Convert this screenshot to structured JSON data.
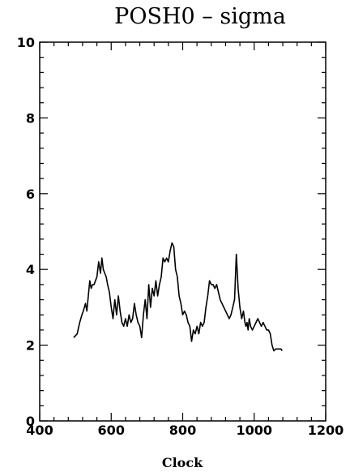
{
  "chart_data": {
    "type": "line",
    "title": "POSH0 – sigma",
    "xlabel": "Clock",
    "ylabel": "",
    "xlim": [
      400,
      1200
    ],
    "ylim": [
      0,
      10
    ],
    "grid": false,
    "x_ticks": [
      400,
      600,
      800,
      1000,
      1200
    ],
    "y_ticks": [
      0,
      2,
      4,
      6,
      8,
      10
    ],
    "series": [
      {
        "x": [
          495,
          505,
          512,
          518,
          522,
          528,
          532,
          536,
          540,
          544,
          548,
          552,
          556,
          560,
          565,
          570,
          574,
          578,
          582,
          586,
          590,
          595,
          600,
          605,
          610,
          615,
          620,
          625,
          630,
          635,
          640,
          645,
          650,
          655,
          660,
          665,
          670,
          675,
          680,
          685,
          690,
          695,
          700,
          705,
          710,
          715,
          720,
          725,
          730,
          735,
          740,
          745,
          750,
          755,
          760,
          765,
          770,
          775,
          780,
          785,
          790,
          795,
          800,
          805,
          810,
          815,
          820,
          825,
          830,
          835,
          840,
          845,
          850,
          855,
          860,
          865,
          870,
          875,
          880,
          885,
          890,
          895,
          900,
          905,
          910,
          915,
          920,
          925,
          930,
          935,
          940,
          945,
          950,
          955,
          960,
          965,
          970,
          974,
          977,
          980,
          983,
          986,
          990,
          995,
          1000,
          1005,
          1010,
          1015,
          1020,
          1025,
          1030,
          1035,
          1040,
          1045,
          1050,
          1055,
          1060,
          1065,
          1070,
          1075,
          1078
        ],
        "values": [
          2.2,
          2.3,
          2.6,
          2.8,
          2.9,
          3.1,
          2.9,
          3.3,
          3.7,
          3.5,
          3.6,
          3.6,
          3.7,
          3.8,
          4.2,
          3.9,
          4.3,
          4.0,
          3.9,
          3.8,
          3.6,
          3.4,
          3.0,
          2.7,
          3.2,
          2.8,
          3.3,
          2.9,
          2.6,
          2.5,
          2.7,
          2.5,
          2.8,
          2.6,
          2.7,
          3.1,
          2.8,
          2.6,
          2.5,
          2.2,
          2.8,
          3.2,
          2.7,
          3.6,
          3.0,
          3.5,
          3.3,
          3.7,
          3.3,
          3.6,
          3.8,
          4.3,
          4.2,
          4.3,
          4.2,
          4.5,
          4.7,
          4.6,
          4.0,
          3.8,
          3.3,
          3.1,
          2.8,
          2.9,
          2.8,
          2.6,
          2.5,
          2.1,
          2.4,
          2.3,
          2.5,
          2.3,
          2.6,
          2.5,
          2.6,
          3.0,
          3.3,
          3.7,
          3.6,
          3.6,
          3.5,
          3.6,
          3.4,
          3.2,
          3.1,
          3.0,
          2.9,
          2.8,
          2.7,
          2.8,
          3.0,
          3.2,
          4.4,
          3.5,
          3.0,
          2.7,
          2.9,
          2.6,
          2.5,
          2.6,
          2.4,
          2.7,
          2.5,
          2.4,
          2.5,
          2.6,
          2.7,
          2.6,
          2.5,
          2.6,
          2.5,
          2.4,
          2.4,
          2.3,
          2.0,
          1.85,
          1.9,
          1.9,
          1.9,
          1.9,
          1.85
        ]
      }
    ]
  }
}
